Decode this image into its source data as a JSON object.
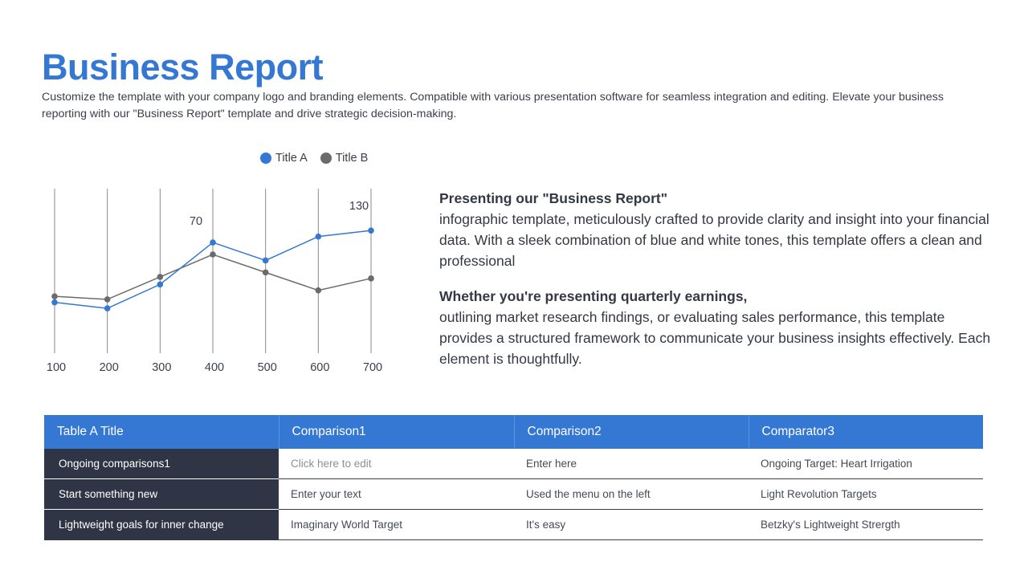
{
  "header": {
    "title": "Business Report",
    "subtitle": "Customize the template with your company logo and branding elements. Compatible with various presentation software for seamless integration and editing. Elevate your business reporting with our \"Business Report\" template and drive strategic decision-making."
  },
  "colors": {
    "accent": "#3578d4",
    "series_b": "#6b6b6b",
    "row_header_bg": "#2f3545",
    "text": "#333844"
  },
  "legend": [
    {
      "label": "Title A",
      "color": "#3578d4"
    },
    {
      "label": "Title B",
      "color": "#6b6b6b"
    }
  ],
  "chart_data": {
    "type": "line",
    "title": "",
    "xlabel": "",
    "ylabel": "",
    "x": [
      100,
      200,
      300,
      400,
      500,
      600,
      700
    ],
    "categories": [
      "100",
      "200",
      "300",
      "400",
      "500",
      "600",
      "700"
    ],
    "series": [
      {
        "name": "Title A",
        "color": "#3578d4",
        "values": [
          34,
          30,
          46,
          74,
          62,
          78,
          82
        ]
      },
      {
        "name": "Title B",
        "color": "#6b6b6b",
        "values": [
          38,
          36,
          51,
          66,
          54,
          42,
          50
        ]
      }
    ],
    "annotations": [
      {
        "text": "70",
        "x": 400
      },
      {
        "text": "130",
        "x": 700
      }
    ],
    "ylim": [
      0,
      110
    ],
    "grid": "vertical",
    "legend_position": "top-right"
  },
  "description": {
    "paragraphs": [
      {
        "lead": "Presenting our \"Business Report\"",
        "body": "infographic template, meticulously crafted to provide clarity and insight into your financial data. With a sleek combination of blue and white tones, this template offers a clean and professional"
      },
      {
        "lead": "Whether you're presenting quarterly earnings,",
        "body": "outlining market research findings, or evaluating sales performance, this template provides a structured framework to communicate your business insights effectively. Each element is thoughtfully."
      }
    ]
  },
  "table": {
    "headers": [
      "Table A Title",
      "Comparison1",
      "Comparison2",
      "Comparator3"
    ],
    "rows": [
      [
        "Ongoing comparisons1",
        "Click here to edit",
        "Enter here",
        "Ongoing Target: Heart Irrigation"
      ],
      [
        "Start something new",
        "Enter your text",
        "Used the menu on the left",
        "Light Revolution Targets"
      ],
      [
        "Lightweight goals for inner change",
        "Imaginary World Target",
        "It's easy",
        "Betzky's Lightweight Strergth"
      ]
    ]
  }
}
